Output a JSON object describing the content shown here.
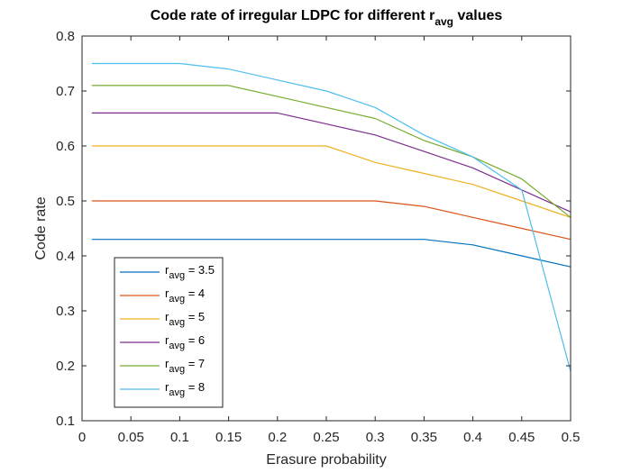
{
  "chart_data": {
    "type": "line",
    "title": "Code rate of irregular LDPC for different r",
    "title_subscript": "avg",
    "title_suffix": " values",
    "xlabel": "Erasure probability",
    "ylabel": "Code rate",
    "xlim": [
      0,
      0.5
    ],
    "ylim": [
      0.1,
      0.8
    ],
    "xticks": [
      0,
      0.05,
      0.1,
      0.15,
      0.2,
      0.25,
      0.3,
      0.35,
      0.4,
      0.45,
      0.5
    ],
    "xtick_labels": [
      "0",
      "0.05",
      "0.1",
      "0.15",
      "0.2",
      "0.25",
      "0.3",
      "0.35",
      "0.4",
      "0.45",
      "0.5"
    ],
    "yticks": [
      0.1,
      0.2,
      0.3,
      0.4,
      0.5,
      0.6,
      0.7,
      0.8
    ],
    "ytick_labels": [
      "0.1",
      "0.2",
      "0.3",
      "0.4",
      "0.5",
      "0.6",
      "0.7",
      "0.8"
    ],
    "grid": false,
    "legend_position": "bottom-left",
    "legend_sub": "avg",
    "series": [
      {
        "name": "r",
        "legend_value": " = 3.5",
        "color": "#0072BD",
        "x": [
          0.01,
          0.05,
          0.1,
          0.15,
          0.2,
          0.25,
          0.3,
          0.35,
          0.4,
          0.45,
          0.5
        ],
        "y": [
          0.43,
          0.43,
          0.43,
          0.43,
          0.43,
          0.43,
          0.43,
          0.43,
          0.42,
          0.4,
          0.38
        ]
      },
      {
        "name": "r",
        "legend_value": " = 4",
        "color": "#D95319",
        "x": [
          0.01,
          0.05,
          0.1,
          0.15,
          0.2,
          0.25,
          0.3,
          0.35,
          0.4,
          0.45,
          0.5
        ],
        "y": [
          0.5,
          0.5,
          0.5,
          0.5,
          0.5,
          0.5,
          0.5,
          0.49,
          0.47,
          0.45,
          0.43
        ]
      },
      {
        "name": "r",
        "legend_value": " = 5",
        "color": "#EDB120",
        "x": [
          0.01,
          0.05,
          0.1,
          0.15,
          0.2,
          0.25,
          0.3,
          0.35,
          0.4,
          0.45,
          0.5
        ],
        "y": [
          0.6,
          0.6,
          0.6,
          0.6,
          0.6,
          0.6,
          0.57,
          0.55,
          0.53,
          0.5,
          0.47
        ]
      },
      {
        "name": "r",
        "legend_value": " = 6",
        "color": "#7E2F8E",
        "x": [
          0.01,
          0.05,
          0.1,
          0.15,
          0.2,
          0.25,
          0.3,
          0.35,
          0.4,
          0.45,
          0.5
        ],
        "y": [
          0.66,
          0.66,
          0.66,
          0.66,
          0.66,
          0.64,
          0.62,
          0.59,
          0.56,
          0.52,
          0.48
        ]
      },
      {
        "name": "r",
        "legend_value": " = 7",
        "color": "#77AC30",
        "x": [
          0.01,
          0.05,
          0.1,
          0.15,
          0.2,
          0.25,
          0.3,
          0.35,
          0.4,
          0.45,
          0.5
        ],
        "y": [
          0.71,
          0.71,
          0.71,
          0.71,
          0.69,
          0.67,
          0.65,
          0.61,
          0.58,
          0.54,
          0.47
        ]
      },
      {
        "name": "r",
        "legend_value": " = 8",
        "color": "#4DBEEE",
        "x": [
          0.01,
          0.05,
          0.1,
          0.15,
          0.2,
          0.25,
          0.3,
          0.35,
          0.4,
          0.45,
          0.5
        ],
        "y": [
          0.75,
          0.75,
          0.75,
          0.74,
          0.72,
          0.7,
          0.67,
          0.62,
          0.58,
          0.52,
          0.19
        ]
      }
    ]
  }
}
